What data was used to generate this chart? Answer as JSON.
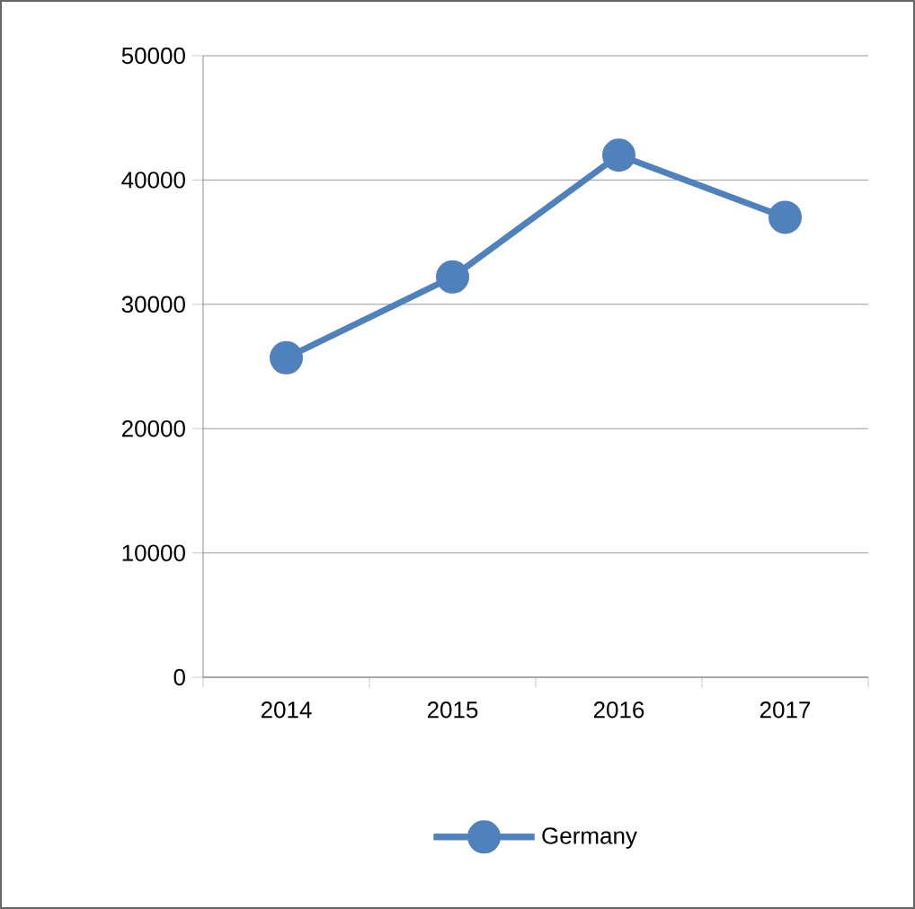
{
  "chart_data": {
    "type": "line",
    "categories": [
      "2014",
      "2015",
      "2016",
      "2017"
    ],
    "series": [
      {
        "name": "Germany",
        "color": "#4f81bd",
        "values": [
          25700,
          32200,
          42000,
          37000
        ]
      }
    ],
    "ylim": [
      0,
      50000
    ],
    "yticks": [
      0,
      10000,
      20000,
      30000,
      40000,
      50000
    ],
    "grid": "y",
    "legend": "bottom",
    "marker": "circle",
    "line_style": "solid"
  }
}
